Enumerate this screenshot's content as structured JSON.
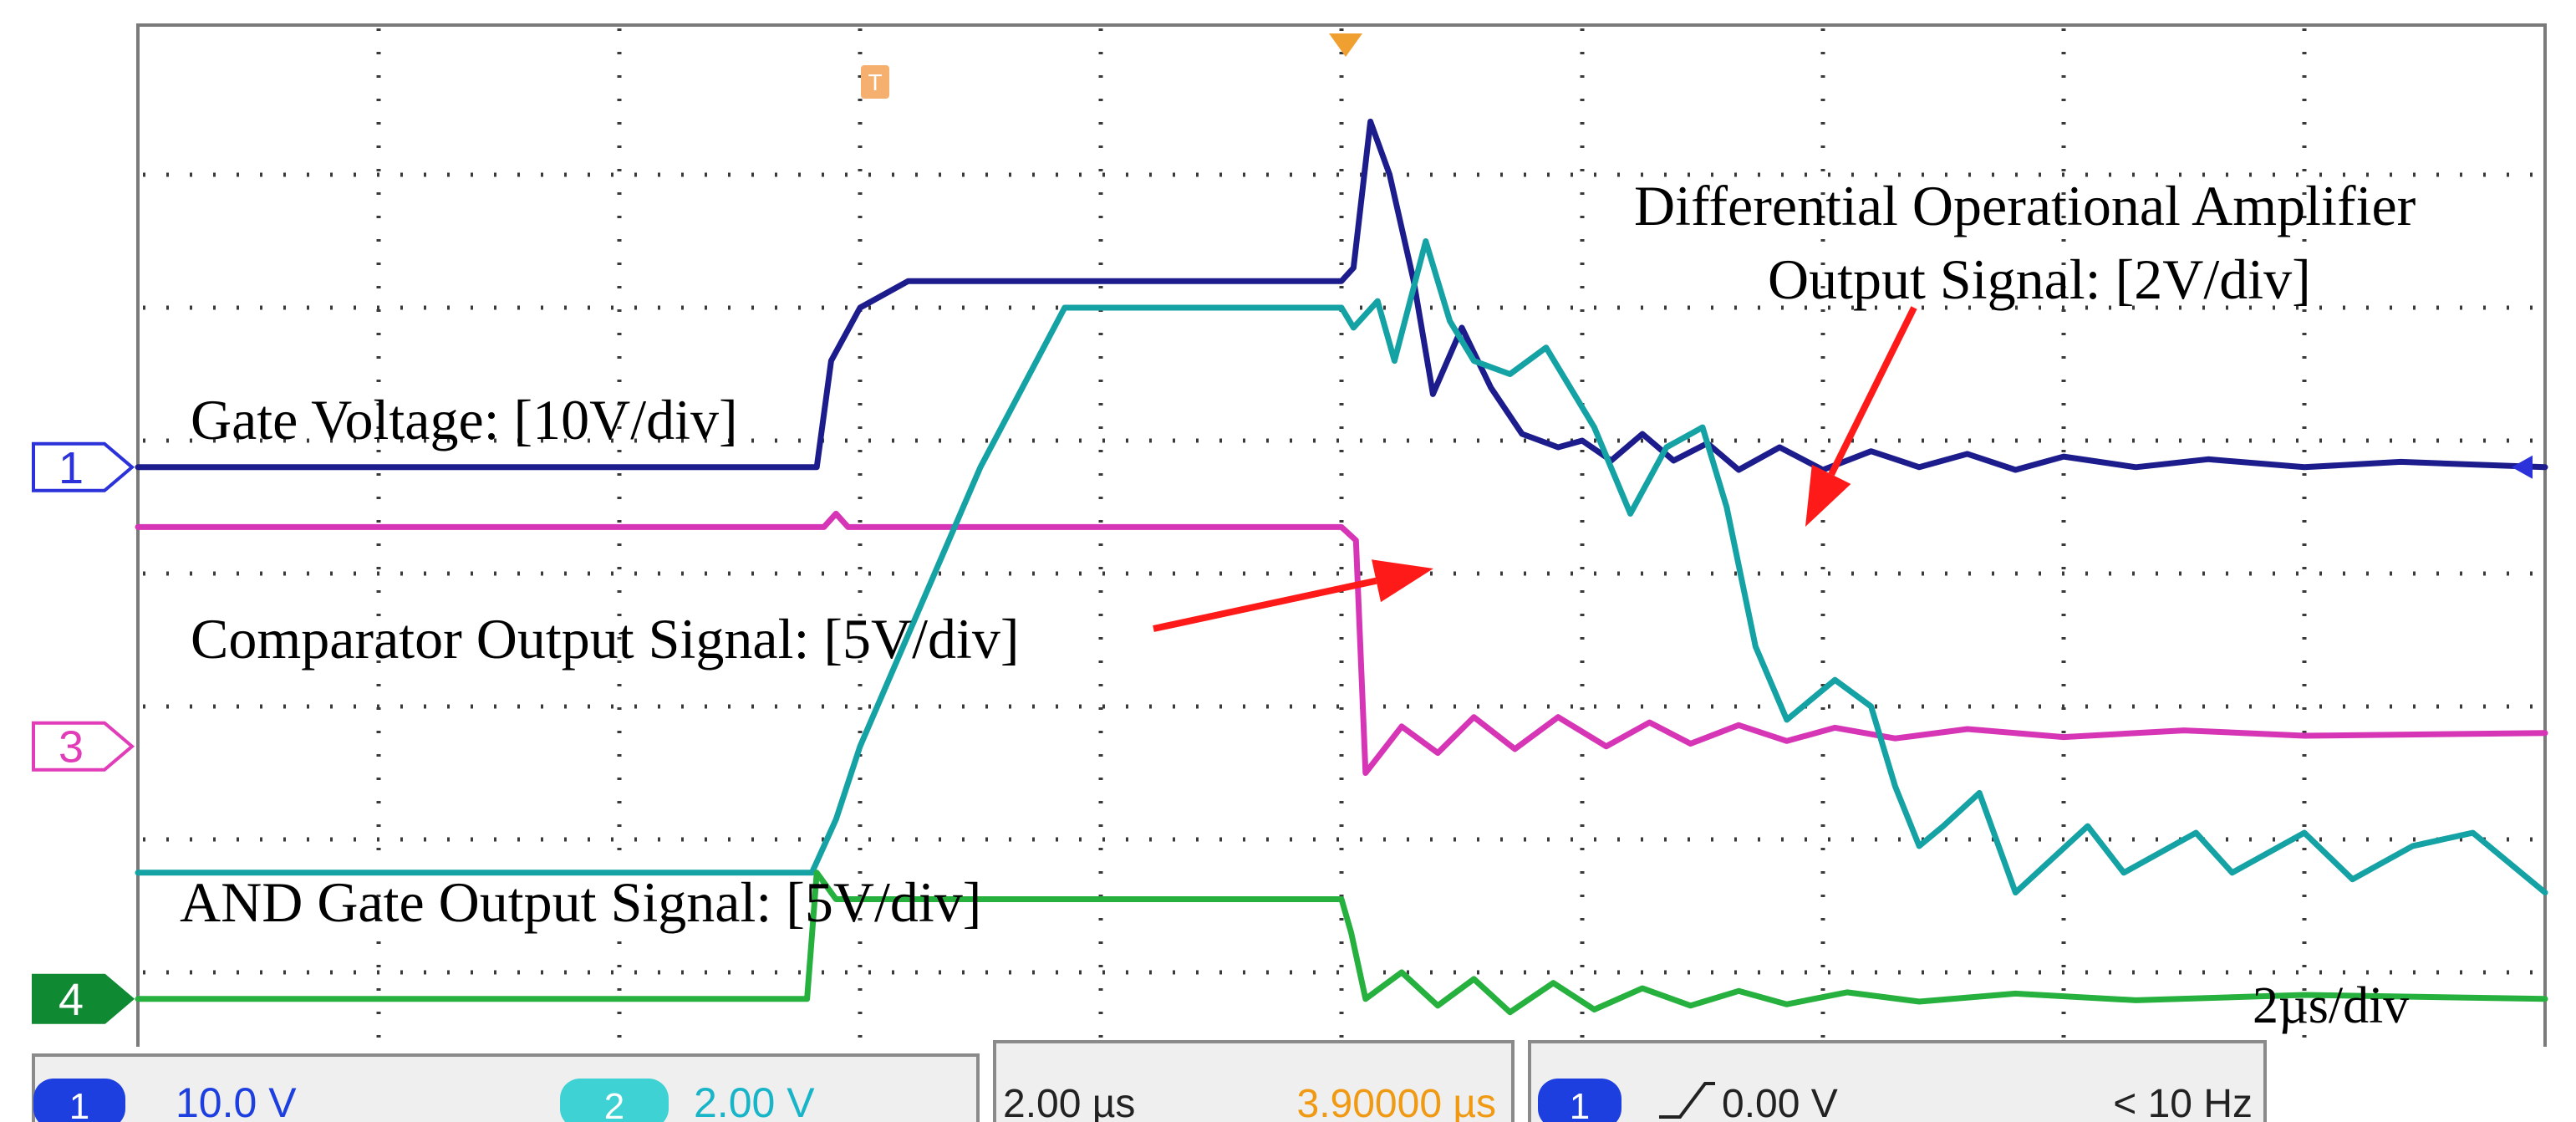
{
  "chart_data": {
    "type": "line",
    "xlabel": "",
    "ylabel": "",
    "timebase": "2µs/div",
    "grid": true,
    "grid_divisions": {
      "x": 10,
      "y": 8
    },
    "x_unit": "div",
    "y_unit": "div",
    "trigger_marker": "T",
    "channel_markers": [
      {
        "label": "1",
        "level_div": 4.8,
        "color": "#2b32d9"
      },
      {
        "label": "3",
        "level_div": 2.7,
        "color": "#e23db8"
      },
      {
        "label": "4",
        "level_div": 0.8,
        "color": "#108a32"
      }
    ],
    "series": [
      {
        "name": "Gate Voltage: [10V/div]",
        "color": "#1c1c8c",
        "points": [
          [
            0,
            4.8
          ],
          [
            2.82,
            4.8
          ],
          [
            2.88,
            5.6
          ],
          [
            3.0,
            6.0
          ],
          [
            3.2,
            6.2
          ],
          [
            4.0,
            6.2
          ],
          [
            5.0,
            6.2
          ],
          [
            5.05,
            6.3
          ],
          [
            5.12,
            7.4
          ],
          [
            5.2,
            7.0
          ],
          [
            5.3,
            6.2
          ],
          [
            5.38,
            5.35
          ],
          [
            5.5,
            5.85
          ],
          [
            5.62,
            5.4
          ],
          [
            5.75,
            5.05
          ],
          [
            5.9,
            4.95
          ],
          [
            6.0,
            5.0
          ],
          [
            6.12,
            4.85
          ],
          [
            6.25,
            5.05
          ],
          [
            6.38,
            4.85
          ],
          [
            6.52,
            4.98
          ],
          [
            6.65,
            4.78
          ],
          [
            6.82,
            4.95
          ],
          [
            7.0,
            4.78
          ],
          [
            7.2,
            4.92
          ],
          [
            7.4,
            4.8
          ],
          [
            7.6,
            4.9
          ],
          [
            7.8,
            4.78
          ],
          [
            8.0,
            4.88
          ],
          [
            8.3,
            4.8
          ],
          [
            8.6,
            4.86
          ],
          [
            9.0,
            4.8
          ],
          [
            9.4,
            4.84
          ],
          [
            10,
            4.8
          ]
        ]
      },
      {
        "name": "Comparator Output Signal: [5V/div]",
        "color": "#d636b6",
        "points": [
          [
            0,
            4.35
          ],
          [
            2.85,
            4.35
          ],
          [
            2.9,
            4.45
          ],
          [
            2.95,
            4.35
          ],
          [
            5.0,
            4.35
          ],
          [
            5.06,
            4.25
          ],
          [
            5.1,
            2.5
          ],
          [
            5.25,
            2.85
          ],
          [
            5.4,
            2.65
          ],
          [
            5.55,
            2.92
          ],
          [
            5.72,
            2.68
          ],
          [
            5.9,
            2.92
          ],
          [
            6.1,
            2.7
          ],
          [
            6.28,
            2.88
          ],
          [
            6.45,
            2.72
          ],
          [
            6.65,
            2.86
          ],
          [
            6.85,
            2.74
          ],
          [
            7.05,
            2.84
          ],
          [
            7.3,
            2.76
          ],
          [
            7.6,
            2.83
          ],
          [
            8.0,
            2.77
          ],
          [
            8.5,
            2.82
          ],
          [
            9.0,
            2.78
          ],
          [
            10,
            2.8
          ]
        ]
      },
      {
        "name": "Differential Operational Amplifier Output Signal: [2V/div]",
        "color": "#14a2a4",
        "points": [
          [
            0,
            1.75
          ],
          [
            2.8,
            1.75
          ],
          [
            2.9,
            2.15
          ],
          [
            3.0,
            2.7
          ],
          [
            3.5,
            4.8
          ],
          [
            3.85,
            6.0
          ],
          [
            4.3,
            6.0
          ],
          [
            5.0,
            6.0
          ],
          [
            5.05,
            5.85
          ],
          [
            5.15,
            6.05
          ],
          [
            5.22,
            5.6
          ],
          [
            5.35,
            6.5
          ],
          [
            5.45,
            5.9
          ],
          [
            5.55,
            5.6
          ],
          [
            5.7,
            5.5
          ],
          [
            5.85,
            5.7
          ],
          [
            6.05,
            5.1
          ],
          [
            6.2,
            4.45
          ],
          [
            6.35,
            4.95
          ],
          [
            6.5,
            5.1
          ],
          [
            6.6,
            4.5
          ],
          [
            6.72,
            3.45
          ],
          [
            6.85,
            2.9
          ],
          [
            7.05,
            3.2
          ],
          [
            7.2,
            3.0
          ],
          [
            7.3,
            2.4
          ],
          [
            7.4,
            1.95
          ],
          [
            7.5,
            2.1
          ],
          [
            7.65,
            2.35
          ],
          [
            7.8,
            1.6
          ],
          [
            7.95,
            1.85
          ],
          [
            8.1,
            2.1
          ],
          [
            8.25,
            1.75
          ],
          [
            8.4,
            1.9
          ],
          [
            8.55,
            2.05
          ],
          [
            8.7,
            1.75
          ],
          [
            8.85,
            1.9
          ],
          [
            9.0,
            2.05
          ],
          [
            9.2,
            1.7
          ],
          [
            9.45,
            1.95
          ],
          [
            9.7,
            2.05
          ],
          [
            10,
            1.6
          ]
        ]
      },
      {
        "name": "AND Gate Output Signal: [5V/div]",
        "color": "#26b03e",
        "points": [
          [
            0,
            0.8
          ],
          [
            2.78,
            0.8
          ],
          [
            2.82,
            1.75
          ],
          [
            2.9,
            1.55
          ],
          [
            3.0,
            1.55
          ],
          [
            4.0,
            1.55
          ],
          [
            5.0,
            1.55
          ],
          [
            5.04,
            1.3
          ],
          [
            5.1,
            0.8
          ],
          [
            5.25,
            1.0
          ],
          [
            5.4,
            0.75
          ],
          [
            5.55,
            0.95
          ],
          [
            5.7,
            0.7
          ],
          [
            5.88,
            0.92
          ],
          [
            6.05,
            0.72
          ],
          [
            6.25,
            0.88
          ],
          [
            6.45,
            0.75
          ],
          [
            6.65,
            0.86
          ],
          [
            6.85,
            0.76
          ],
          [
            7.1,
            0.85
          ],
          [
            7.4,
            0.78
          ],
          [
            7.8,
            0.84
          ],
          [
            8.3,
            0.79
          ],
          [
            9.0,
            0.83
          ],
          [
            10,
            0.8
          ]
        ]
      }
    ],
    "annotations": {
      "gate": "Gate Voltage: [10V/div]",
      "comparator": "Comparator Output Signal: [5V/div]",
      "and_gate": "AND Gate Output Signal: [5V/div]",
      "diff_line1": "Differential Operational Amplifier",
      "diff_line2": "Output Signal: [2V/div]",
      "timebase": "2µs/div"
    },
    "status_bar": {
      "ch1_badge": "1",
      "ch1_scale": "10.0 V",
      "ch2_badge": "2",
      "ch2_scale": "2.00 V",
      "time_scale": "2.00 µs",
      "time_offset": "3.90000 µs",
      "trig_badge": "1",
      "trig_level": "0.00 V",
      "trig_freq": "< 10 Hz"
    }
  }
}
